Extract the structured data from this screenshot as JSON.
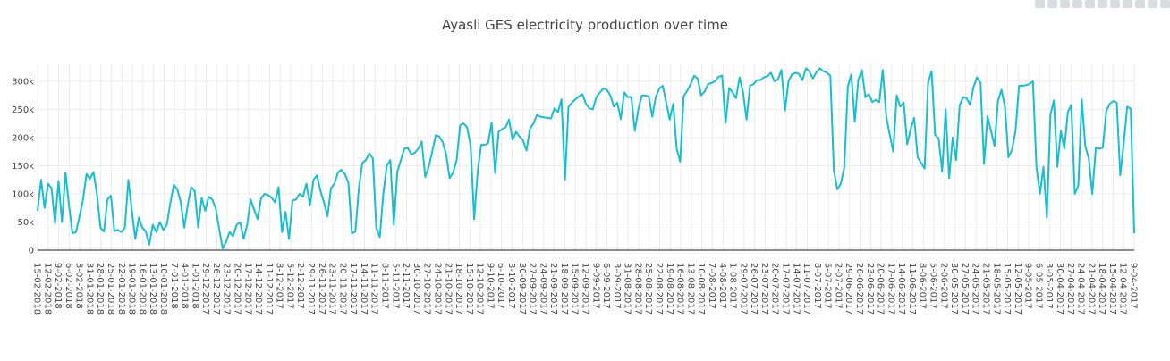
{
  "chart_data": {
    "type": "line",
    "title": "Ayasli GES electricity production over time",
    "xlabel": "",
    "ylabel": "",
    "ylim": [
      0,
      330000
    ],
    "yticks": [
      0,
      50000,
      100000,
      150000,
      200000,
      250000,
      300000
    ],
    "ytick_labels": [
      "0",
      "50k",
      "100k",
      "150k",
      "200k",
      "250k",
      "300k"
    ],
    "grid": true,
    "line_color": "#17becf",
    "x_tick_labels": [
      "15-02-2018",
      "12-02-2018",
      "9-02-2018",
      "6-02-2018",
      "3-02-2018",
      "31-01-2018",
      "28-01-2018",
      "25-01-2018",
      "22-01-2018",
      "19-01-2018",
      "16-01-2018",
      "13-01-2018",
      "10-01-2018",
      "7-01-2018",
      "4-01-2018",
      "1-01-2018",
      "29-12-2017",
      "26-12-2017",
      "23-12-2017",
      "20-12-2017",
      "17-12-2017",
      "14-12-2017",
      "11-12-2017",
      "8-12-2017",
      "5-12-2017",
      "2-12-2017",
      "29-11-2017",
      "26-11-2017",
      "23-11-2017",
      "20-11-2017",
      "17-11-2017",
      "14-11-2017",
      "11-11-2017",
      "8-11-2017",
      "5-11-2017",
      "2-11-2017",
      "30-10-2017",
      "27-10-2017",
      "24-10-2017",
      "21-10-2017",
      "18-10-2017",
      "15-10-2017",
      "12-10-2017",
      "9-10-2017",
      "6-10-2017",
      "3-10-2017",
      "30-09-2017",
      "27-09-2017",
      "24-09-2017",
      "21-09-2017",
      "18-09-2017",
      "15-09-2017",
      "12-09-2017",
      "9-09-2017",
      "6-09-2017",
      "3-09-2017",
      "31-08-2017",
      "28-08-2017",
      "25-08-2017",
      "22-08-2017",
      "19-08-2017",
      "16-08-2017",
      "13-08-2017",
      "10-08-2017",
      "7-08-2017",
      "4-08-2017",
      "1-08-2017",
      "29-07-2017",
      "26-07-2017",
      "23-07-2017",
      "20-07-2017",
      "17-07-2017",
      "14-07-2017",
      "11-07-2017",
      "8-07-2017",
      "5-07-2017",
      "2-07-2017",
      "29-06-2017",
      "26-06-2017",
      "23-06-2017",
      "20-06-2017",
      "17-06-2017",
      "14-06-2017",
      "11-06-2017",
      "8-06-2017",
      "5-06-2017",
      "2-06-2017",
      "30-05-2017",
      "27-05-2017",
      "24-05-2017",
      "21-05-2017",
      "18-05-2017",
      "15-05-2017",
      "12-05-2017",
      "9-05-2017",
      "6-05-2017",
      "3-05-2017",
      "30-04-2017",
      "27-04-2017",
      "24-04-2017",
      "21-04-2017",
      "18-04-2017",
      "15-04-2017",
      "12-04-2017",
      "9-04-2017"
    ],
    "series": [
      {
        "values": [
          70000,
          125000,
          75000,
          118000,
          110000,
          48000,
          123000,
          50000,
          138000,
          80000,
          30000,
          32000,
          60000,
          90000,
          135000,
          127000,
          139000,
          100000,
          40000,
          33000,
          90000,
          97000,
          34000,
          36000,
          32000,
          40000,
          125000,
          70000,
          20000,
          58000,
          40000,
          33000,
          10000,
          45000,
          32000,
          50000,
          36000,
          45000,
          83000,
          116000,
          108000,
          85000,
          40000,
          80000,
          112000,
          105000,
          40000,
          93000,
          70000,
          95000,
          90000,
          75000,
          38000,
          3000,
          15000,
          32000,
          25000,
          45000,
          50000,
          20000,
          45000,
          90000,
          72000,
          55000,
          92000,
          100000,
          98000,
          93000,
          85000,
          112000,
          32000,
          68000,
          20000,
          88000,
          90000,
          100000,
          95000,
          118000,
          80000,
          125000,
          133000,
          105000,
          85000,
          60000,
          110000,
          118000,
          138000,
          143000,
          135000,
          120000,
          30000,
          33000,
          110000,
          155000,
          160000,
          172000,
          163000,
          40000,
          23000,
          100000,
          150000,
          160000,
          45000,
          140000,
          160000,
          180000,
          182000,
          170000,
          173000,
          180000,
          193000,
          130000,
          148000,
          175000,
          204000,
          202000,
          192000,
          170000,
          128000,
          138000,
          160000,
          222000,
          225000,
          218000,
          185000,
          55000,
          140000,
          187000,
          187000,
          190000,
          227000,
          137000,
          210000,
          215000,
          218000,
          232000,
          196000,
          210000,
          202000,
          195000,
          177000,
          216000,
          225000,
          240000,
          237000,
          236000,
          235000,
          234000,
          252000,
          245000,
          268000,
          125000,
          255000,
          262000,
          268000,
          273000,
          277000,
          260000,
          252000,
          250000,
          272000,
          280000,
          287000,
          285000,
          275000,
          255000,
          262000,
          233000,
          280000,
          272000,
          272000,
          212000,
          250000,
          275000,
          275000,
          273000,
          237000,
          272000,
          287000,
          292000,
          262000,
          232000,
          260000,
          180000,
          157000,
          273000,
          283000,
          295000,
          310000,
          305000,
          275000,
          282000,
          295000,
          297000,
          300000,
          308000,
          310000,
          226000,
          288000,
          280000,
          270000,
          307000,
          280000,
          232000,
          292000,
          295000,
          302000,
          302000,
          307000,
          309000,
          315000,
          300000,
          303000,
          320000,
          248000,
          300000,
          312000,
          315000,
          313000,
          302000,
          323000,
          317000,
          305000,
          316000,
          323000,
          318000,
          315000,
          310000,
          142000,
          108000,
          118000,
          147000,
          290000,
          312000,
          228000,
          302000,
          320000,
          272000,
          277000,
          263000,
          267000,
          263000,
          320000,
          237000,
          205000,
          175000,
          275000,
          255000,
          262000,
          188000,
          215000,
          235000,
          165000,
          155000,
          145000,
          298000,
          318000,
          205000,
          198000,
          140000,
          250000,
          128000,
          200000,
          160000,
          257000,
          272000,
          270000,
          258000,
          290000,
          307000,
          297000,
          153000,
          238000,
          212000,
          185000,
          265000,
          285000,
          255000,
          165000,
          178000,
          210000,
          292000,
          292000,
          293000,
          295000,
          300000,
          148000,
          100000,
          148000,
          58000,
          240000,
          266000,
          148000,
          212000,
          180000,
          245000,
          258000,
          100000,
          115000,
          268000,
          185000,
          163000,
          100000,
          182000,
          180000,
          182000,
          247000,
          260000,
          265000,
          262000,
          133000,
          190000,
          255000,
          251000,
          30000
        ]
      }
    ]
  },
  "modebar": {
    "icons": [
      "camera-icon",
      "save-icon",
      "zoom-icon",
      "pan-icon",
      "zoom-in-icon",
      "zoom-out-icon",
      "autoscale-icon",
      "home-icon",
      "spike-icon",
      "hover-closest-icon",
      "hover-compare-icon"
    ]
  }
}
